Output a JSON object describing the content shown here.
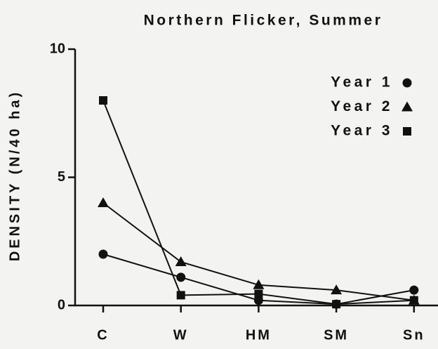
{
  "chart_data": {
    "type": "line",
    "title": "Northern Flicker, Summer",
    "y_label": "DENSITY (N/40 ha)",
    "categories": [
      "C",
      "W",
      "HM",
      "SM",
      "Sn"
    ],
    "series": [
      {
        "name": "Year 1",
        "marker": "circle",
        "color": "#111111",
        "values": [
          2.0,
          1.1,
          0.2,
          0.05,
          0.6
        ]
      },
      {
        "name": "Year 2",
        "marker": "triangle",
        "color": "#111111",
        "values": [
          4.0,
          1.7,
          0.8,
          0.6,
          0.2
        ]
      },
      {
        "name": "Year 3",
        "marker": "square",
        "color": "#111111",
        "values": [
          8.0,
          0.4,
          0.45,
          0.05,
          0.2
        ]
      }
    ],
    "ylim": [
      0,
      10
    ],
    "yticks": [
      0,
      5,
      10
    ],
    "legend": "upper right"
  }
}
